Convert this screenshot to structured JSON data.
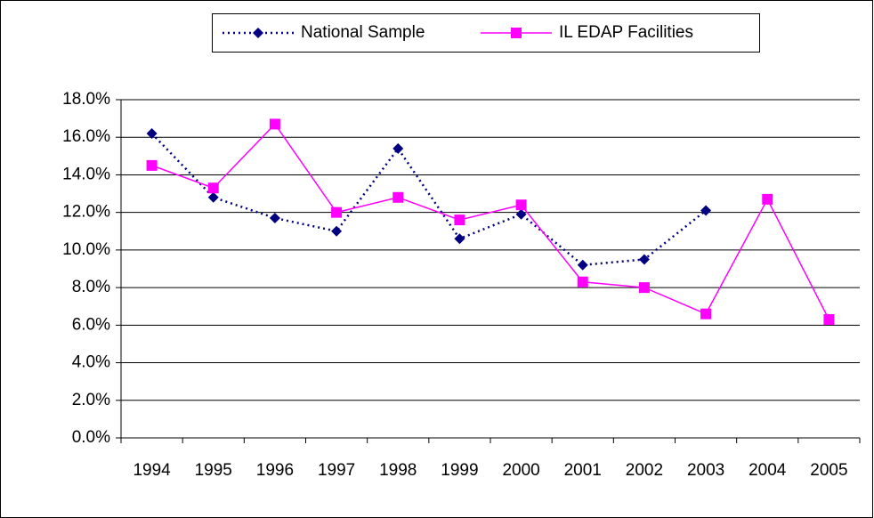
{
  "chart_data": {
    "type": "line",
    "categories": [
      "1994",
      "1995",
      "1996",
      "1997",
      "1998",
      "1999",
      "2000",
      "2001",
      "2002",
      "2003",
      "2004",
      "2005"
    ],
    "series": [
      {
        "name": "National Sample",
        "color": "#000080",
        "line_style": "dotted",
        "marker": "diamond",
        "values": [
          16.2,
          12.8,
          11.7,
          11.0,
          15.4,
          10.6,
          11.9,
          9.2,
          9.5,
          12.1,
          null,
          null
        ]
      },
      {
        "name": "IL EDAP Facilities",
        "color": "#ff00ff",
        "line_style": "solid",
        "marker": "square",
        "values": [
          14.5,
          13.3,
          16.7,
          12.0,
          12.8,
          11.6,
          12.4,
          8.3,
          8.0,
          6.6,
          12.7,
          6.3
        ]
      }
    ],
    "ylim": [
      0,
      18
    ],
    "yticks": [
      {
        "value": 0,
        "label": "0.0%"
      },
      {
        "value": 2,
        "label": "2.0%"
      },
      {
        "value": 4,
        "label": "4.0%"
      },
      {
        "value": 6,
        "label": "6.0%"
      },
      {
        "value": 8,
        "label": "8.0%"
      },
      {
        "value": 10,
        "label": "10.0%"
      },
      {
        "value": 12,
        "label": "12.0%"
      },
      {
        "value": 14,
        "label": "14.0%"
      },
      {
        "value": 16,
        "label": "16.0%"
      },
      {
        "value": 18,
        "label": "18.0%"
      }
    ],
    "grid": true,
    "legend": "top"
  }
}
